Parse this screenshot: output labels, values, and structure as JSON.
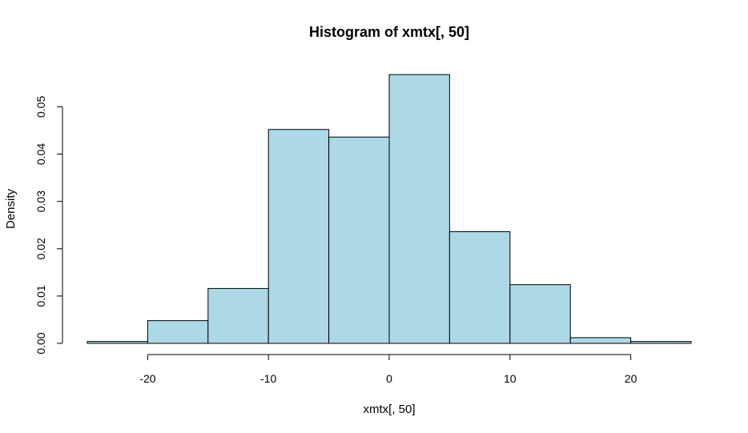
{
  "chart_data": {
    "type": "bar",
    "title": "Histogram of xmtx[, 50]",
    "xlabel": "xmtx[, 50]",
    "ylabel": "Density",
    "bar_color": "#add8e6",
    "border_color": "#000000",
    "xlim": [
      -25,
      25
    ],
    "ylim": [
      0,
      0.057
    ],
    "x_ticks": [
      -20,
      -10,
      0,
      10,
      20
    ],
    "x_tick_labels": [
      "-20",
      "-10",
      "0",
      "10",
      "20"
    ],
    "y_ticks": [
      0,
      0.01,
      0.02,
      0.03,
      0.04,
      0.05
    ],
    "y_tick_labels": [
      "0.00",
      "0.01",
      "0.02",
      "0.03",
      "0.04",
      "0.05"
    ],
    "grid": false,
    "bins": [
      {
        "start": -25,
        "end": -20,
        "density": 0.0004
      },
      {
        "start": -20,
        "end": -15,
        "density": 0.0048
      },
      {
        "start": -15,
        "end": -10,
        "density": 0.0116
      },
      {
        "start": -10,
        "end": -5,
        "density": 0.0452
      },
      {
        "start": -5,
        "end": 0,
        "density": 0.0436
      },
      {
        "start": 0,
        "end": 5,
        "density": 0.0568
      },
      {
        "start": 5,
        "end": 10,
        "density": 0.0236
      },
      {
        "start": 10,
        "end": 15,
        "density": 0.0124
      },
      {
        "start": 15,
        "end": 20,
        "density": 0.0012
      },
      {
        "start": 20,
        "end": 25,
        "density": 0.0004
      }
    ]
  }
}
